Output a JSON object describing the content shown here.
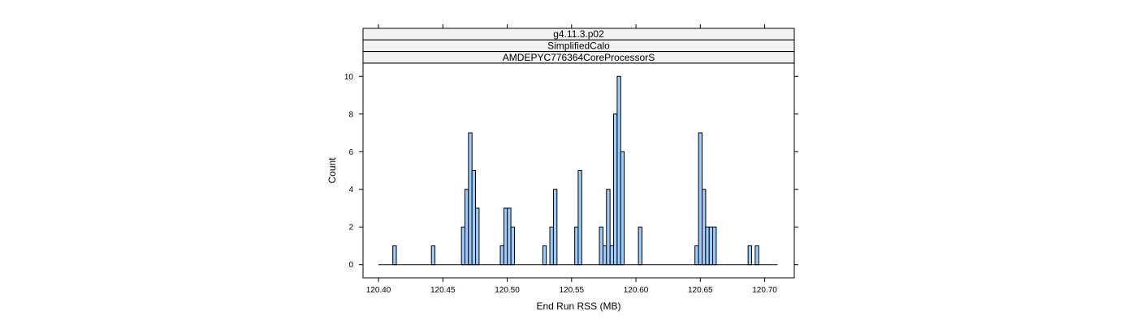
{
  "chart_data": {
    "type": "bar",
    "strips": [
      "g4.11.3.p02",
      "SimplifiedCalo",
      "AMDEPYC776364CoreProcessorS"
    ],
    "xlabel": "End Run RSS (MB)",
    "ylabel": "Count",
    "xlim": [
      120.388,
      120.723
    ],
    "ylim": [
      -0.7,
      10.7
    ],
    "xticks": [
      120.4,
      120.45,
      120.5,
      120.55,
      120.6,
      120.65,
      120.7
    ],
    "xtick_labels": [
      "120.40",
      "120.45",
      "120.50",
      "120.55",
      "120.60",
      "120.65",
      "120.70"
    ],
    "yticks": [
      0,
      2,
      4,
      6,
      8,
      10
    ],
    "ytick_labels": [
      "0",
      "2",
      "4",
      "6",
      "8",
      "10"
    ],
    "range": [
      120.4,
      120.71
    ],
    "bin_width": 0.00275,
    "bar_color": "#99ccff",
    "bars": [
      {
        "x": 120.4125,
        "count": 1
      },
      {
        "x": 120.4425,
        "count": 1
      },
      {
        "x": 120.4658,
        "count": 2
      },
      {
        "x": 120.4685,
        "count": 4
      },
      {
        "x": 120.4713,
        "count": 7
      },
      {
        "x": 120.474,
        "count": 5
      },
      {
        "x": 120.4768,
        "count": 3
      },
      {
        "x": 120.496,
        "count": 1
      },
      {
        "x": 120.4988,
        "count": 3
      },
      {
        "x": 120.5015,
        "count": 3
      },
      {
        "x": 120.5043,
        "count": 2
      },
      {
        "x": 120.529,
        "count": 1
      },
      {
        "x": 120.5345,
        "count": 2
      },
      {
        "x": 120.5373,
        "count": 4
      },
      {
        "x": 120.5538,
        "count": 2
      },
      {
        "x": 120.5565,
        "count": 5
      },
      {
        "x": 120.573,
        "count": 2
      },
      {
        "x": 120.5758,
        "count": 1
      },
      {
        "x": 120.5785,
        "count": 4
      },
      {
        "x": 120.5813,
        "count": 1
      },
      {
        "x": 120.584,
        "count": 8
      },
      {
        "x": 120.5868,
        "count": 10
      },
      {
        "x": 120.5895,
        "count": 6
      },
      {
        "x": 120.6033,
        "count": 2
      },
      {
        "x": 120.6472,
        "count": 1
      },
      {
        "x": 120.65,
        "count": 7
      },
      {
        "x": 120.6528,
        "count": 4
      },
      {
        "x": 120.6555,
        "count": 2
      },
      {
        "x": 120.6583,
        "count": 2
      },
      {
        "x": 120.661,
        "count": 2
      },
      {
        "x": 120.6885,
        "count": 1
      },
      {
        "x": 120.694,
        "count": 1
      }
    ]
  }
}
